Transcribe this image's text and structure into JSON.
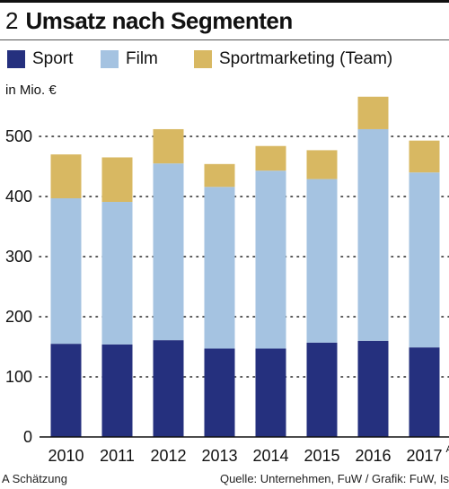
{
  "header": {
    "number": "2",
    "title": "Umsatz nach Segmenten"
  },
  "unit_label": "in Mio. €",
  "footnote": "A Schätzung",
  "source": "Quelle: Unternehmen, FuW / Grafik: FuW, Is",
  "colors": {
    "Sport": "#25307e",
    "Film": "#a5c3e1",
    "Sportmarketing (Team)": "#d8b862"
  },
  "chart_data": {
    "type": "bar",
    "stacked": true,
    "categories": [
      "2010",
      "2011",
      "2012",
      "2013",
      "2014",
      "2015",
      "2016",
      "2017"
    ],
    "category_superscripts": [
      "",
      "",
      "",
      "",
      "",
      "",
      "",
      "A"
    ],
    "series": [
      {
        "name": "Sport",
        "values": [
          155,
          154,
          161,
          147,
          147,
          157,
          160,
          149
        ]
      },
      {
        "name": "Film",
        "values": [
          242,
          237,
          294,
          269,
          296,
          272,
          352,
          291
        ]
      },
      {
        "name": "Sportmarketing (Team)",
        "values": [
          73,
          74,
          57,
          38,
          41,
          48,
          54,
          53
        ]
      }
    ],
    "ylim": [
      0,
      580
    ],
    "yticks": [
      "0",
      "100",
      "200",
      "300",
      "400",
      "500"
    ],
    "ytick_values": [
      0,
      100,
      200,
      300,
      400,
      500
    ],
    "grid": true,
    "legend_position": "top"
  }
}
